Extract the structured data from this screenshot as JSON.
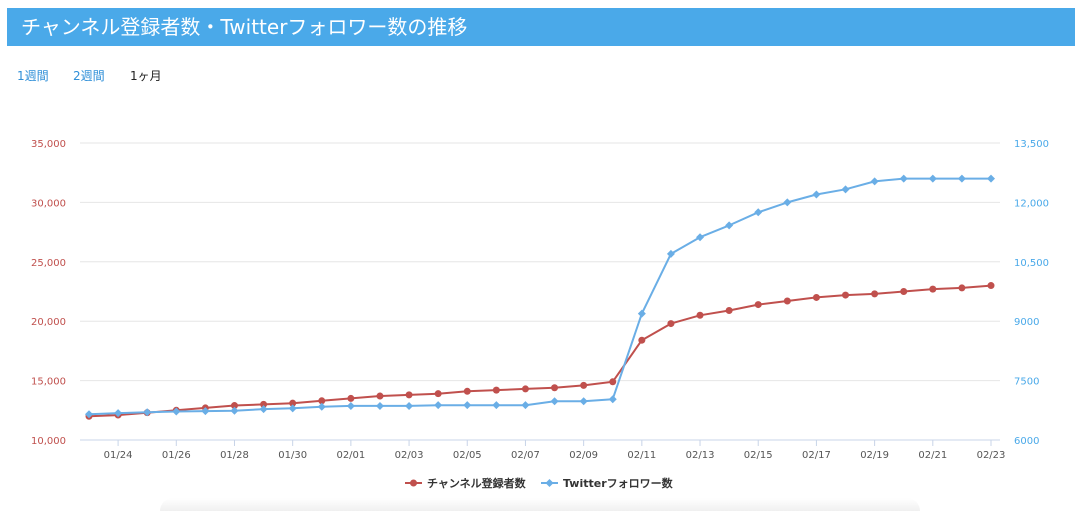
{
  "header": {
    "title": "チャンネル登録者数・Twitterフォロワー数の推移"
  },
  "range_tabs": [
    {
      "label": "1週間",
      "active": false
    },
    {
      "label": "2週間",
      "active": false
    },
    {
      "label": "1ヶ月",
      "active": true
    }
  ],
  "colors": {
    "header_bg": "#4aa9e9",
    "subscribers": "#c0504d",
    "followers": "#6aaee6",
    "tab_link": "#2f8fd8"
  },
  "chart_data": {
    "type": "line",
    "title": "",
    "xlabel": "",
    "ylabel": "",
    "x": [
      "01/23",
      "01/24",
      "01/25",
      "01/26",
      "01/27",
      "01/28",
      "01/29",
      "01/30",
      "01/31",
      "02/01",
      "02/02",
      "02/03",
      "02/04",
      "02/05",
      "02/06",
      "02/07",
      "02/08",
      "02/09",
      "02/10",
      "02/11",
      "02/12",
      "02/13",
      "02/14",
      "02/15",
      "02/16",
      "02/17",
      "02/18",
      "02/19",
      "02/20",
      "02/21",
      "02/22",
      "02/23"
    ],
    "x_tick_labels": [
      "01/24",
      "01/26",
      "01/28",
      "01/30",
      "02/01",
      "02/03",
      "02/05",
      "02/07",
      "02/09",
      "02/11",
      "02/13",
      "02/15",
      "02/17",
      "02/19",
      "02/21",
      "02/23"
    ],
    "y_left": {
      "min": 10000,
      "max": 35000,
      "ticks": [
        "10,000",
        "15,000",
        "20,000",
        "25,000",
        "30,000",
        "35,000"
      ]
    },
    "y_right": {
      "min": 6000,
      "max": 13500,
      "ticks": [
        "6000",
        "7500",
        "9000",
        "10,500",
        "12,000",
        "13,500"
      ]
    },
    "grid": true,
    "legend_position": "bottom-center",
    "series": [
      {
        "name": "チャンネル登録者数",
        "axis": "left",
        "color": "#c0504d",
        "marker": "circle",
        "values": [
          12000,
          12100,
          12300,
          12500,
          12700,
          12900,
          13000,
          13100,
          13300,
          13500,
          13700,
          13800,
          13900,
          14100,
          14200,
          14300,
          14400,
          14600,
          14900,
          18400,
          19800,
          20500,
          20900,
          21400,
          21700,
          22000,
          22200,
          22300,
          22500,
          22700,
          22800,
          23000
        ]
      },
      {
        "name": "Twitterフォロワー数",
        "axis": "right",
        "color": "#6aaee6",
        "marker": "diamond",
        "values": [
          6650,
          6680,
          6700,
          6720,
          6730,
          6740,
          6780,
          6800,
          6840,
          6860,
          6860,
          6860,
          6880,
          6880,
          6880,
          6880,
          6980,
          6980,
          7030,
          9190,
          10700,
          11120,
          11420,
          11750,
          12000,
          12200,
          12330,
          12530,
          12600,
          12600,
          12600,
          12600
        ]
      }
    ]
  }
}
